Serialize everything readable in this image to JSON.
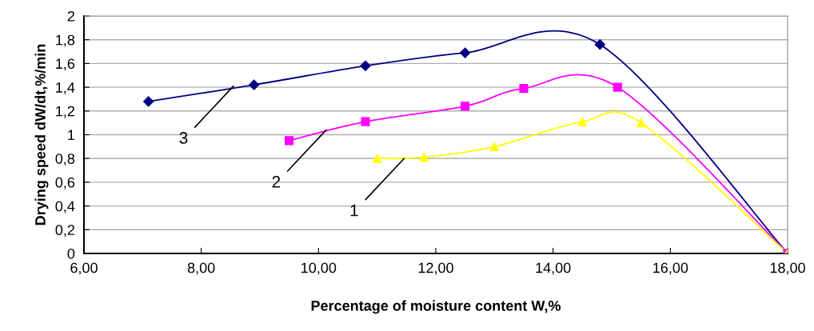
{
  "chart_data": {
    "type": "line",
    "xlabel": "Percentage of moisture content W,%",
    "ylabel": "Drying speed dW/dt,%/min",
    "xlim": [
      6,
      18
    ],
    "xticks": [
      {
        "value": 6,
        "label": "6,00"
      },
      {
        "value": 8,
        "label": "8,00"
      },
      {
        "value": 10,
        "label": "10,00"
      },
      {
        "value": 12,
        "label": "12,00"
      },
      {
        "value": 14,
        "label": "14,00"
      },
      {
        "value": 16,
        "label": "16,00"
      },
      {
        "value": 18,
        "label": "18,00"
      }
    ],
    "ylim": [
      0,
      2
    ],
    "yticks": [
      0,
      {
        "value": 0.2,
        "label": "0,2"
      },
      {
        "value": 0.4,
        "label": "0,4"
      },
      {
        "value": 0.6,
        "label": "0,6"
      },
      {
        "value": 0.8,
        "label": "0,8"
      },
      1,
      {
        "value": 1.2,
        "label": "1,2"
      },
      {
        "value": 1.4,
        "label": "1,4"
      },
      {
        "value": 1.6,
        "label": "1,6"
      },
      {
        "value": 1.8,
        "label": "1,8"
      },
      2
    ],
    "grid": "y",
    "legend": false,
    "series": [
      {
        "color": "#000080",
        "marker": "diamond",
        "x": [
          7.1,
          8.9,
          10.8,
          12.5,
          14.8,
          18
        ],
        "values": [
          1.28,
          1.42,
          1.58,
          1.69,
          1.76,
          0
        ]
      },
      {
        "color": "#ff00ff",
        "marker": "square",
        "x": [
          9.5,
          10.8,
          12.5,
          13.5,
          15.1,
          18
        ],
        "values": [
          0.95,
          1.11,
          1.24,
          1.39,
          1.4,
          0
        ]
      },
      {
        "color": "#ffff00",
        "marker": "triangle",
        "x": [
          11.0,
          11.8,
          13.0,
          14.5,
          15.5,
          18
        ],
        "values": [
          0.8,
          0.81,
          0.9,
          1.11,
          1.1,
          0
        ]
      }
    ],
    "annotations": [
      {
        "text": "3",
        "x": 8.55,
        "y": 1.41
      },
      {
        "text": "2",
        "x": 10.13,
        "y": 1.04
      },
      {
        "text": "1",
        "x": 11.46,
        "y": 0.8
      }
    ]
  }
}
